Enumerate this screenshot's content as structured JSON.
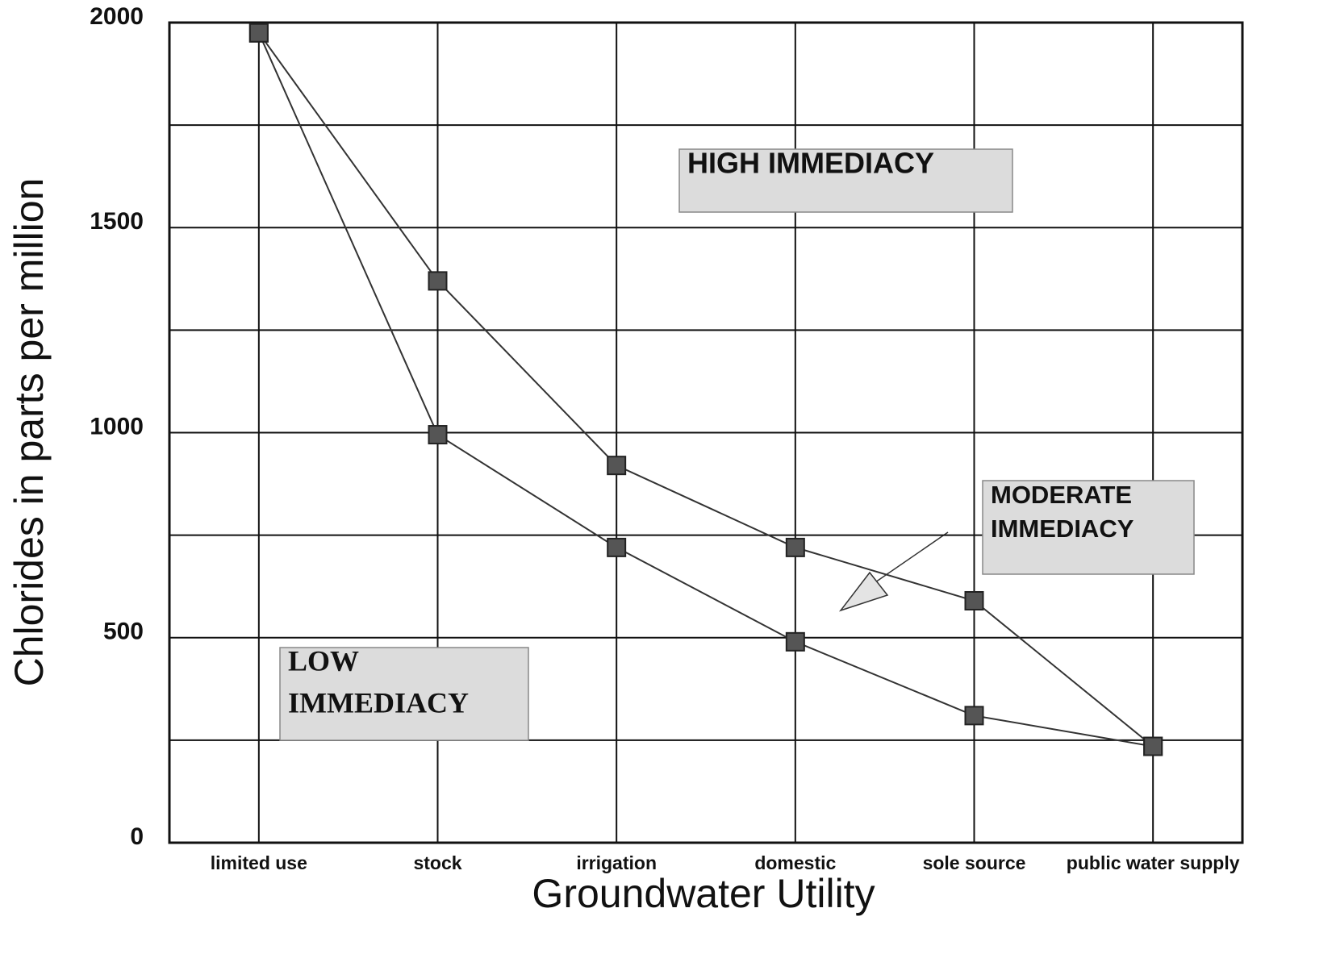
{
  "chart_data": {
    "type": "line",
    "x_label": "Groundwater Utility",
    "y_label": "Chlorides in parts per million",
    "categories": [
      "limited use",
      "stock",
      "irrigation",
      "domestic",
      "sole source",
      "public water supply"
    ],
    "series": [
      {
        "color": "#333333",
        "values": [
          1975,
          1370,
          920,
          720,
          590,
          235
        ]
      },
      {
        "color": "#333333",
        "values": [
          1975,
          995,
          720,
          490,
          310,
          235
        ]
      }
    ],
    "ylim": [
      0,
      2000
    ],
    "yticks": [
      0,
      500,
      1000,
      1500,
      2000
    ],
    "yminor": [
      250,
      750,
      1250,
      1750
    ],
    "grid": true,
    "annotations": [
      {
        "lines": [
          "HIGH IMMEDIACY"
        ]
      },
      {
        "lines": [
          "MODERATE",
          "IMMEDIACY"
        ]
      },
      {
        "lines": [
          "LOW",
          "IMMEDIACY"
        ]
      }
    ]
  }
}
